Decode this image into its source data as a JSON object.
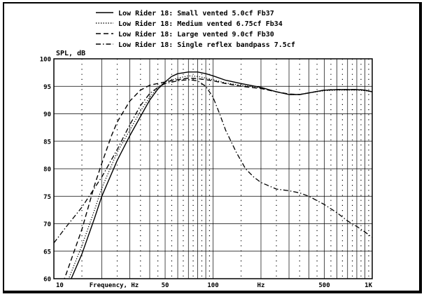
{
  "chart_data": {
    "type": "line",
    "title": "",
    "xlabel": "Frequency, Hz",
    "ylabel": "SPL, dB",
    "xscale": "log",
    "xlim": [
      10,
      1000
    ],
    "ylim": [
      60,
      100
    ],
    "grid": true,
    "legend_position": "top-center",
    "x_tick_labels": [
      {
        "value": 10,
        "label": "10"
      },
      {
        "value": 50,
        "label": "50"
      },
      {
        "value": 100,
        "label": "100"
      },
      {
        "value": 200,
        "label": "Hz"
      },
      {
        "value": 500,
        "label": "500"
      },
      {
        "value": 1000,
        "label": "1K"
      }
    ],
    "y_ticks": [
      60,
      65,
      70,
      75,
      80,
      85,
      90,
      95,
      100
    ],
    "series": [
      {
        "name": "Low Rider 18: Small vented 5.0cf Fb37",
        "style": "solid",
        "points": [
          [
            12,
            58
          ],
          [
            15,
            64.5
          ],
          [
            18,
            71
          ],
          [
            20,
            75
          ],
          [
            25,
            81.5
          ],
          [
            30,
            86
          ],
          [
            35,
            89.5
          ],
          [
            40,
            92.5
          ],
          [
            45,
            94.5
          ],
          [
            50,
            95.8
          ],
          [
            55,
            96.8
          ],
          [
            60,
            97.3
          ],
          [
            70,
            97.6
          ],
          [
            80,
            97.6
          ],
          [
            90,
            97.3
          ],
          [
            100,
            96.9
          ],
          [
            120,
            96.1
          ],
          [
            150,
            95.5
          ],
          [
            200,
            94.8
          ],
          [
            250,
            94
          ],
          [
            300,
            93.5
          ],
          [
            350,
            93.5
          ],
          [
            400,
            93.8
          ],
          [
            500,
            94.3
          ],
          [
            600,
            94.4
          ],
          [
            700,
            94.4
          ],
          [
            800,
            94.4
          ],
          [
            900,
            94.3
          ],
          [
            1000,
            94
          ]
        ]
      },
      {
        "name": "Low Rider 18: Medium vented 6.75cf Fb34",
        "style": "dotted",
        "points": [
          [
            12,
            59
          ],
          [
            15,
            66
          ],
          [
            18,
            72.5
          ],
          [
            20,
            76.5
          ],
          [
            25,
            83
          ],
          [
            30,
            87
          ],
          [
            35,
            90.5
          ],
          [
            40,
            93
          ],
          [
            45,
            94.8
          ],
          [
            50,
            95.8
          ],
          [
            60,
            96.5
          ],
          [
            70,
            96.9
          ],
          [
            80,
            96.8
          ],
          [
            90,
            96.5
          ],
          [
            100,
            96.2
          ],
          [
            120,
            95.6
          ],
          [
            150,
            95.2
          ],
          [
            200,
            94.7
          ],
          [
            250,
            94
          ],
          [
            300,
            93.5
          ],
          [
            350,
            93.5
          ],
          [
            400,
            93.8
          ],
          [
            500,
            94.2
          ],
          [
            600,
            94.3
          ],
          [
            700,
            94.3
          ],
          [
            800,
            94.3
          ],
          [
            900,
            94.2
          ],
          [
            1000,
            94
          ]
        ]
      },
      {
        "name": "Low Rider 18: Large vented 9.0cf Fb30",
        "style": "dashed",
        "points": [
          [
            11,
            58
          ],
          [
            12,
            61
          ],
          [
            15,
            69
          ],
          [
            18,
            77
          ],
          [
            20,
            81
          ],
          [
            23,
            86
          ],
          [
            25,
            88.5
          ],
          [
            30,
            92.3
          ],
          [
            35,
            94.3
          ],
          [
            40,
            95.2
          ],
          [
            50,
            95.8
          ],
          [
            60,
            96.2
          ],
          [
            70,
            96.5
          ],
          [
            80,
            96.4
          ],
          [
            90,
            96.2
          ],
          [
            100,
            96
          ],
          [
            120,
            95.5
          ],
          [
            150,
            95
          ],
          [
            200,
            94.6
          ],
          [
            250,
            94
          ],
          [
            300,
            93.6
          ],
          [
            350,
            93.5
          ],
          [
            400,
            93.8
          ],
          [
            500,
            94.3
          ],
          [
            600,
            94.4
          ],
          [
            700,
            94.4
          ],
          [
            800,
            94.4
          ],
          [
            900,
            94.3
          ],
          [
            1000,
            94
          ]
        ]
      },
      {
        "name": "Low Rider 18: Single reflex bandpass 7.5cf",
        "style": "dash-dot",
        "points": [
          [
            10,
            66.5
          ],
          [
            12,
            69.5
          ],
          [
            15,
            73
          ],
          [
            18,
            76.5
          ],
          [
            20,
            78.5
          ],
          [
            25,
            83.5
          ],
          [
            30,
            88
          ],
          [
            35,
            91.5
          ],
          [
            40,
            93.7
          ],
          [
            45,
            94.8
          ],
          [
            50,
            95.5
          ],
          [
            60,
            96
          ],
          [
            70,
            96.2
          ],
          [
            80,
            96
          ],
          [
            90,
            95
          ],
          [
            100,
            93
          ],
          [
            110,
            90
          ],
          [
            120,
            87
          ],
          [
            140,
            83
          ],
          [
            160,
            80
          ],
          [
            180,
            78.5
          ],
          [
            200,
            77.5
          ],
          [
            250,
            76.3
          ],
          [
            300,
            76
          ],
          [
            350,
            75.6
          ],
          [
            400,
            75
          ],
          [
            500,
            73.5
          ],
          [
            600,
            72
          ],
          [
            700,
            70.5
          ],
          [
            800,
            69.5
          ],
          [
            900,
            68.5
          ],
          [
            1000,
            67.5
          ]
        ]
      }
    ]
  }
}
